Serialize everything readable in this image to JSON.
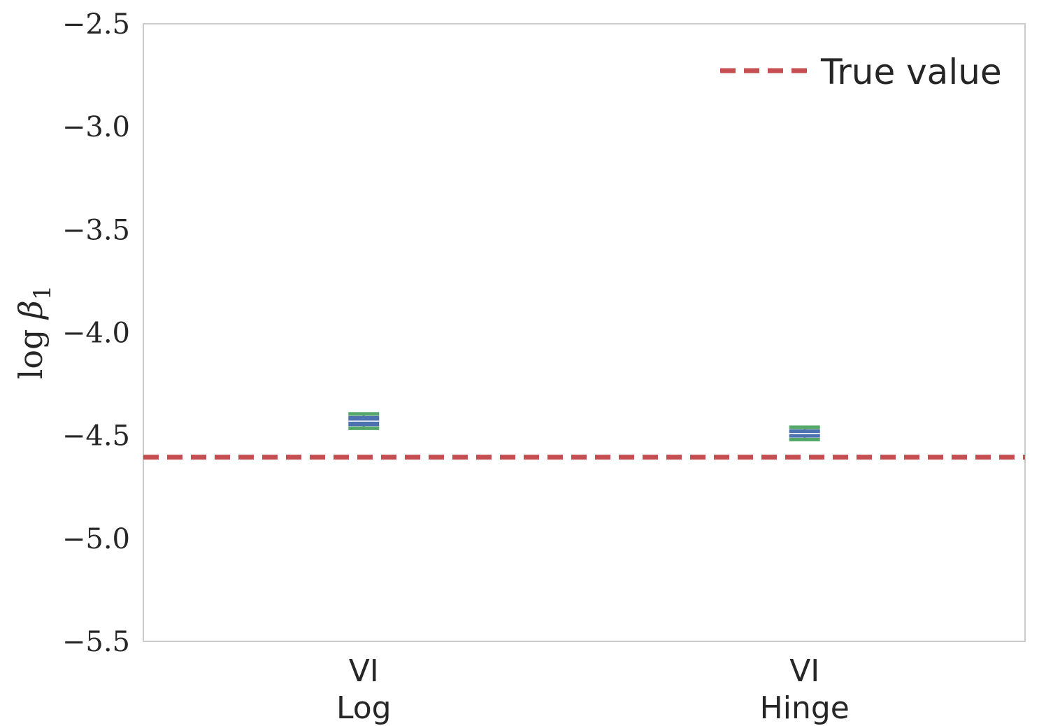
{
  "chart_data": {
    "type": "scatter",
    "title": "",
    "xlabel": "",
    "ylabel_main": "log ",
    "ylabel_symbol": "β",
    "ylabel_sub": "1",
    "ylim": [
      -5.5,
      -2.5
    ],
    "yticks": [
      -2.5,
      -3.0,
      -3.5,
      -4.0,
      -4.5,
      -5.0,
      -5.5
    ],
    "ytick_labels": [
      "−2.5",
      "−3.0",
      "−3.5",
      "−4.0",
      "−4.5",
      "−5.0",
      "−5.5"
    ],
    "categories": [
      {
        "line1": "VI",
        "line2": "Log"
      },
      {
        "line1": "VI",
        "line2": "Hinge"
      }
    ],
    "points": [
      {
        "category": 0,
        "value": -4.43,
        "box_low": -4.455,
        "box_high": -4.405,
        "whisker_low": -4.465,
        "whisker_high": -4.395
      },
      {
        "category": 1,
        "value": -4.49,
        "box_low": -4.51,
        "box_high": -4.47,
        "whisker_low": -4.52,
        "whisker_high": -4.46
      }
    ],
    "reference_line": {
      "value": -4.605,
      "label": "True value"
    },
    "grid": false,
    "legend_position": "top-right",
    "colors": {
      "reference": "#c44e52",
      "box": "#4c72b0",
      "whisker": "#55a868",
      "spine": "#cccccc",
      "text": "#262626"
    }
  }
}
